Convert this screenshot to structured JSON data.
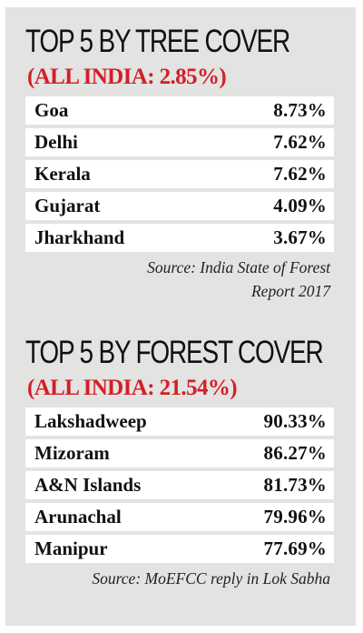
{
  "chart_data": [
    {
      "type": "table",
      "title": "TOP 5 BY TREE COVER",
      "subtitle": "(ALL INDIA: 2.85%)",
      "categories": [
        "Goa",
        "Delhi",
        "Kerala",
        "Gujarat",
        "Jharkhand"
      ],
      "values": [
        8.73,
        7.62,
        7.62,
        4.09,
        3.67
      ],
      "display_values": [
        "8.73%",
        "7.62%",
        "7.62%",
        "4.09%",
        "3.67%"
      ],
      "source_lines": [
        "Source:  India State of Forest",
        "Report 2017"
      ]
    },
    {
      "type": "table",
      "title": "TOP 5 BY FOREST COVER",
      "subtitle": "(ALL INDIA: 21.54%)",
      "categories": [
        "Lakshadweep",
        "Mizoram",
        "A&N Islands",
        "Arunachal",
        "Manipur"
      ],
      "values": [
        90.33,
        86.27,
        81.73,
        79.96,
        77.69
      ],
      "display_values": [
        "90.33%",
        "86.27%",
        "81.73%",
        "79.96%",
        "77.69%"
      ],
      "source_lines": [
        "Source: MoEFCC reply in Lok Sabha"
      ]
    }
  ],
  "colors": {
    "panel_background": "#e3e3e2",
    "row_background": "#ffffff",
    "subtitle_accent": "#d31f26",
    "text": "#111111"
  }
}
